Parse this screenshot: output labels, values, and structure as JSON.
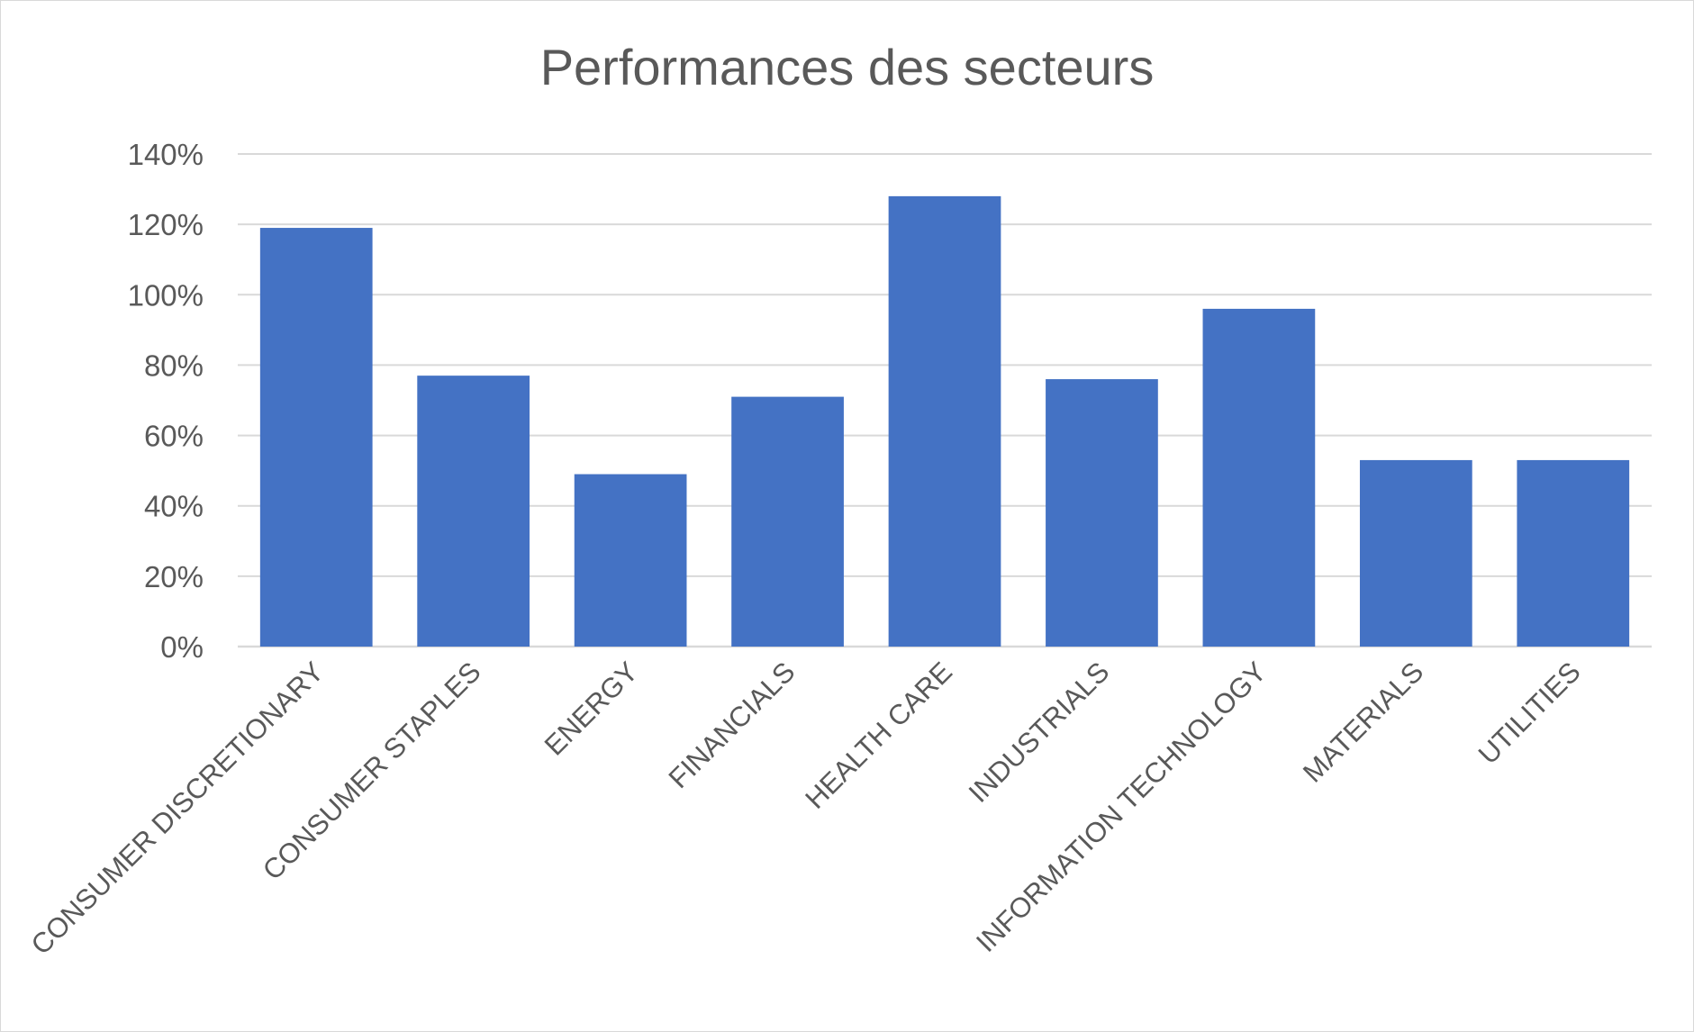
{
  "chart_data": {
    "type": "bar",
    "title": "Performances des secteurs",
    "xlabel": "",
    "ylabel": "",
    "ylim": [
      0,
      1.4
    ],
    "y_ticks": [
      0,
      0.2,
      0.4,
      0.6,
      0.8,
      1.0,
      1.2,
      1.4
    ],
    "y_tick_labels": [
      "0%",
      "20%",
      "40%",
      "60%",
      "80%",
      "100%",
      "120%",
      "140%"
    ],
    "y_format": "percent",
    "grid": true,
    "legend": "none",
    "bar_color": "#4472C4",
    "grid_color": "#d9d9d9",
    "categories": [
      "CONSUMER DISCRETIONARY",
      "CONSUMER STAPLES",
      "ENERGY",
      "FINANCIALS",
      "HEALTH CARE",
      "INDUSTRIALS",
      "INFORMATION TECHNOLOGY",
      "MATERIALS",
      "UTILITIES"
    ],
    "values": [
      1.19,
      0.77,
      0.49,
      0.71,
      1.28,
      0.76,
      0.96,
      0.53,
      0.53
    ]
  }
}
